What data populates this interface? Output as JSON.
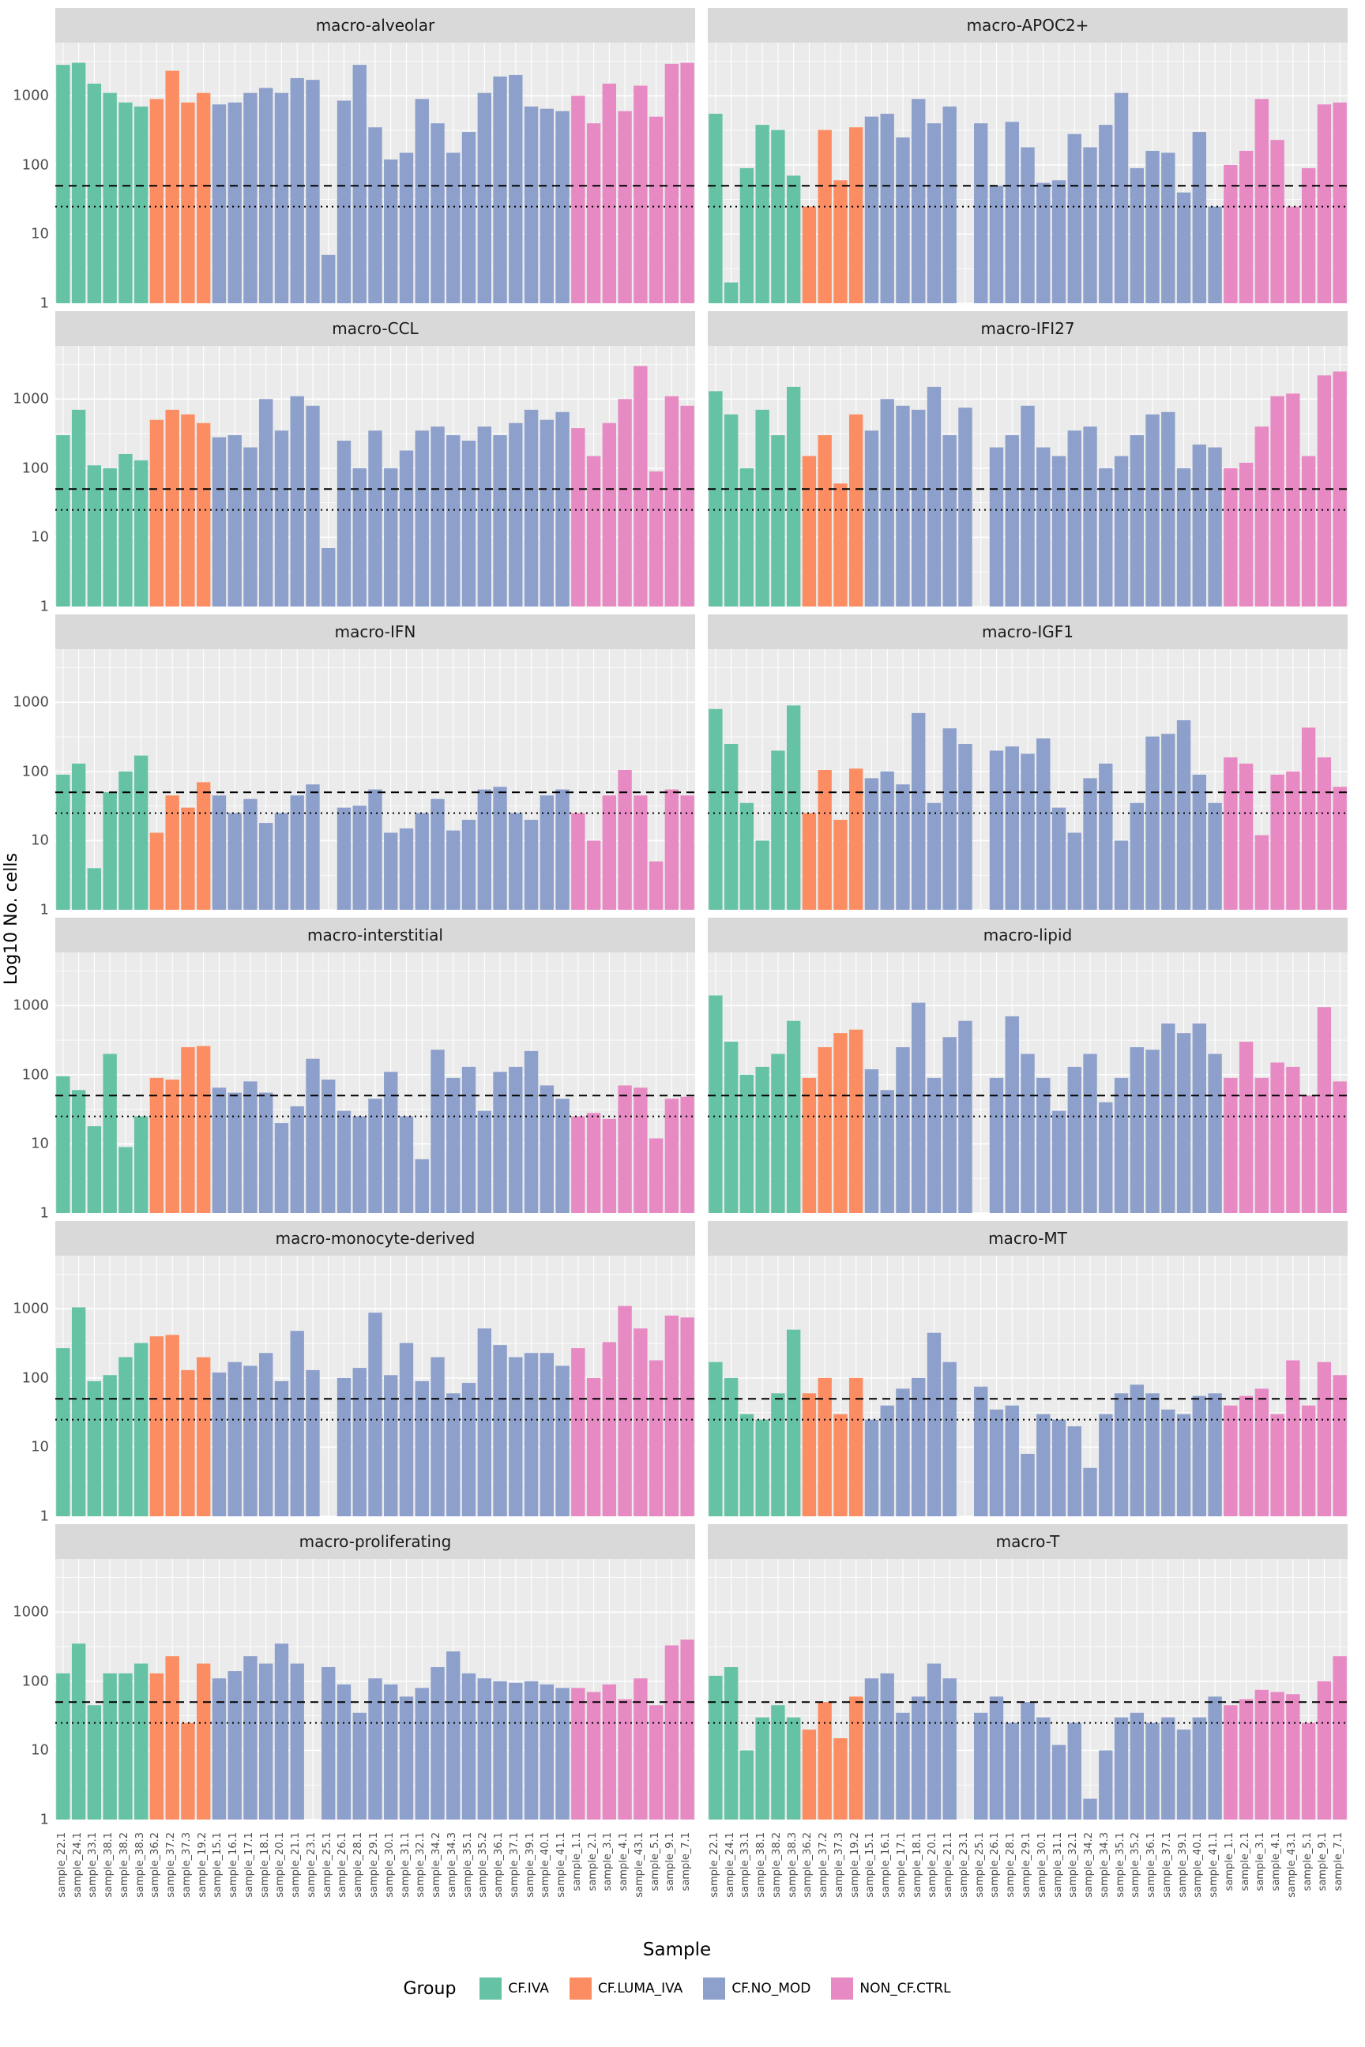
{
  "figure": {
    "y_axis_title": "Log10 No. cells",
    "x_axis_title": "Sample",
    "legend_title": "Group"
  },
  "chart_data": {
    "type": "bar",
    "scale": "log10",
    "ylim": [
      1,
      5000
    ],
    "y_ticks": [
      1,
      10,
      100,
      1000
    ],
    "grid": "on",
    "legend_position": "bottom",
    "reference_lines": {
      "dashed_y": 50,
      "dotted_y": 25
    },
    "groups": [
      {
        "label": "CF.IVA",
        "color": "#66C2A5"
      },
      {
        "label": "CF.LUMA_IVA",
        "color": "#FC8D62"
      },
      {
        "label": "CF.NO_MOD",
        "color": "#8DA0CB"
      },
      {
        "label": "NON_CF.CTRL",
        "color": "#E78AC3"
      }
    ],
    "samples": [
      "sample_22.1",
      "sample_24.1",
      "sample_33.1",
      "sample_38.1",
      "sample_38.2",
      "sample_38.3",
      "sample_36.2",
      "sample_37.2",
      "sample_37.3",
      "sample_19.2",
      "sample_15.1",
      "sample_16.1",
      "sample_17.1",
      "sample_18.1",
      "sample_20.1",
      "sample_21.1",
      "sample_23.1",
      "sample_25.1",
      "sample_26.1",
      "sample_28.1",
      "sample_29.1",
      "sample_30.1",
      "sample_31.1",
      "sample_32.1",
      "sample_34.2",
      "sample_34.3",
      "sample_35.1",
      "sample_35.2",
      "sample_36.1",
      "sample_37.1",
      "sample_39.1",
      "sample_40.1",
      "sample_41.1",
      "sample_1.1",
      "sample_2.1",
      "sample_3.1",
      "sample_4.1",
      "sample_43.1",
      "sample_5.1",
      "sample_9.1",
      "sample_7.1"
    ],
    "sample_groups": [
      0,
      0,
      0,
      0,
      0,
      0,
      1,
      1,
      1,
      1,
      2,
      2,
      2,
      2,
      2,
      2,
      2,
      2,
      2,
      2,
      2,
      2,
      2,
      2,
      2,
      2,
      2,
      2,
      2,
      2,
      2,
      2,
      2,
      3,
      3,
      3,
      3,
      3,
      3,
      3,
      3
    ],
    "facets": [
      {
        "title": "macro-alveolar",
        "values": [
          2800,
          3000,
          1500,
          1100,
          800,
          700,
          900,
          2300,
          800,
          1100,
          750,
          800,
          1100,
          1300,
          1100,
          1800,
          1700,
          5,
          850,
          2800,
          350,
          120,
          150,
          900,
          400,
          150,
          300,
          1100,
          1900,
          2000,
          700,
          650,
          600,
          1000,
          400,
          1500,
          600,
          1400,
          500,
          2900,
          3000
        ]
      },
      {
        "title": "macro-APOC2+",
        "values": [
          550,
          2,
          90,
          380,
          320,
          70,
          25,
          320,
          60,
          350,
          500,
          550,
          250,
          900,
          400,
          700,
          1,
          400,
          50,
          420,
          180,
          55,
          60,
          280,
          180,
          380,
          1100,
          90,
          160,
          150,
          40,
          300,
          25,
          100,
          160,
          900,
          230,
          25,
          90,
          750,
          800
        ]
      },
      {
        "title": "macro-CCL",
        "values": [
          300,
          700,
          110,
          100,
          160,
          130,
          500,
          700,
          600,
          450,
          280,
          300,
          200,
          1000,
          350,
          1100,
          800,
          7,
          250,
          100,
          350,
          100,
          180,
          350,
          400,
          300,
          250,
          400,
          300,
          450,
          700,
          500,
          650,
          380,
          150,
          450,
          1000,
          3000,
          90,
          1100,
          800
        ]
      },
      {
        "title": "macro-IFI27",
        "values": [
          1300,
          600,
          100,
          700,
          300,
          1500,
          150,
          300,
          60,
          600,
          350,
          1000,
          800,
          700,
          1500,
          300,
          750,
          1,
          200,
          300,
          800,
          200,
          150,
          350,
          400,
          100,
          150,
          300,
          600,
          650,
          100,
          220,
          200,
          100,
          120,
          400,
          1100,
          1200,
          150,
          2200,
          2500
        ]
      },
      {
        "title": "macro-IFN",
        "values": [
          90,
          130,
          4,
          50,
          100,
          170,
          13,
          45,
          30,
          70,
          45,
          25,
          40,
          18,
          25,
          45,
          65,
          1,
          30,
          32,
          55,
          13,
          15,
          25,
          40,
          14,
          20,
          55,
          60,
          25,
          20,
          45,
          55,
          25,
          10,
          45,
          105,
          45,
          5,
          55,
          45
        ]
      },
      {
        "title": "macro-IGF1",
        "values": [
          800,
          250,
          35,
          10,
          200,
          900,
          25,
          105,
          20,
          110,
          80,
          100,
          65,
          700,
          35,
          420,
          250,
          1,
          200,
          230,
          180,
          300,
          30,
          13,
          80,
          130,
          10,
          35,
          320,
          350,
          550,
          90,
          35,
          160,
          130,
          12,
          90,
          100,
          430,
          160,
          60
        ]
      },
      {
        "title": "macro-interstitial",
        "values": [
          95,
          60,
          18,
          200,
          9,
          25,
          90,
          85,
          250,
          260,
          65,
          55,
          80,
          55,
          20,
          35,
          170,
          85,
          30,
          25,
          45,
          110,
          25,
          6,
          230,
          90,
          130,
          30,
          110,
          130,
          220,
          70,
          45,
          25,
          28,
          23,
          70,
          65,
          12,
          45,
          48
        ]
      },
      {
        "title": "macro-lipid",
        "values": [
          1400,
          300,
          100,
          130,
          200,
          600,
          90,
          250,
          400,
          450,
          120,
          60,
          250,
          1100,
          90,
          350,
          600,
          1,
          90,
          700,
          200,
          90,
          30,
          130,
          200,
          40,
          90,
          250,
          230,
          550,
          400,
          550,
          200,
          90,
          300,
          90,
          150,
          130,
          50,
          950,
          80
        ]
      },
      {
        "title": "macro-monocyte-derived",
        "values": [
          270,
          1050,
          90,
          110,
          200,
          320,
          400,
          420,
          130,
          200,
          120,
          170,
          150,
          230,
          90,
          480,
          130,
          1,
          100,
          140,
          880,
          110,
          320,
          90,
          200,
          60,
          85,
          520,
          300,
          200,
          230,
          230,
          150,
          270,
          100,
          330,
          1100,
          520,
          180,
          800,
          750
        ]
      },
      {
        "title": "macro-MT",
        "values": [
          170,
          100,
          30,
          25,
          60,
          500,
          60,
          100,
          30,
          100,
          25,
          40,
          70,
          100,
          450,
          170,
          1,
          75,
          35,
          40,
          8,
          30,
          25,
          20,
          5,
          30,
          60,
          80,
          60,
          35,
          30,
          55,
          60,
          40,
          55,
          70,
          30,
          180,
          40,
          170,
          110
        ]
      },
      {
        "title": "macro-proliferating",
        "values": [
          130,
          350,
          45,
          130,
          130,
          180,
          130,
          230,
          25,
          180,
          110,
          140,
          230,
          180,
          350,
          180,
          1,
          160,
          90,
          35,
          110,
          90,
          60,
          80,
          160,
          270,
          130,
          110,
          100,
          95,
          100,
          90,
          80,
          80,
          70,
          90,
          55,
          110,
          45,
          330,
          400
        ]
      },
      {
        "title": "macro-T",
        "values": [
          120,
          160,
          10,
          30,
          45,
          30,
          20,
          50,
          15,
          60,
          110,
          130,
          35,
          60,
          180,
          110,
          1,
          35,
          60,
          25,
          50,
          30,
          12,
          25,
          2,
          10,
          30,
          35,
          25,
          30,
          20,
          30,
          60,
          45,
          55,
          75,
          70,
          65,
          25,
          100,
          230
        ]
      }
    ]
  }
}
